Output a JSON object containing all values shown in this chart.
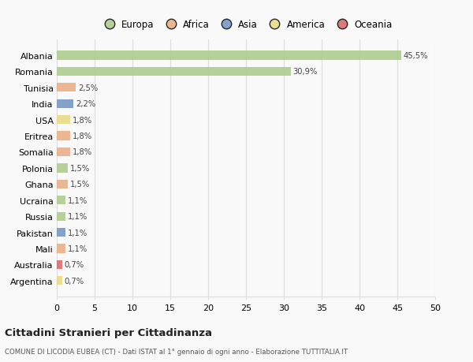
{
  "categories": [
    "Albania",
    "Romania",
    "Tunisia",
    "India",
    "USA",
    "Eritrea",
    "Somalia",
    "Polonia",
    "Ghana",
    "Ucraina",
    "Russia",
    "Pakistan",
    "Mali",
    "Australia",
    "Argentina"
  ],
  "values": [
    45.5,
    30.9,
    2.5,
    2.2,
    1.8,
    1.8,
    1.8,
    1.5,
    1.5,
    1.1,
    1.1,
    1.1,
    1.1,
    0.7,
    0.7
  ],
  "labels": [
    "45,5%",
    "30,9%",
    "2,5%",
    "2,2%",
    "1,8%",
    "1,8%",
    "1,8%",
    "1,5%",
    "1,5%",
    "1,1%",
    "1,1%",
    "1,1%",
    "1,1%",
    "0,7%",
    "0,7%"
  ],
  "colors": [
    "#a8c784",
    "#a8c784",
    "#e8a87c",
    "#6b8fbf",
    "#e8d87c",
    "#e8a87c",
    "#e8a87c",
    "#a8c784",
    "#e8a87c",
    "#a8c784",
    "#a8c784",
    "#6b8fbf",
    "#e8a87c",
    "#d45f5f",
    "#e8d87c"
  ],
  "continent_labels": [
    "Europa",
    "Africa",
    "Asia",
    "America",
    "Oceania"
  ],
  "continent_colors": [
    "#a8c784",
    "#e8a87c",
    "#6b8fbf",
    "#e8d87c",
    "#d45f5f"
  ],
  "xlim": [
    0,
    50
  ],
  "xticks": [
    0,
    5,
    10,
    15,
    20,
    25,
    30,
    35,
    40,
    45,
    50
  ],
  "title": "Cittadini Stranieri per Cittadinanza",
  "subtitle": "COMUNE DI LICODIA EUBEA (CT) - Dati ISTAT al 1° gennaio di ogni anno - Elaborazione TUTTITALIA.IT",
  "background_color": "#f9f9f9",
  "bar_height": 0.55,
  "grid_color": "#dddddd"
}
